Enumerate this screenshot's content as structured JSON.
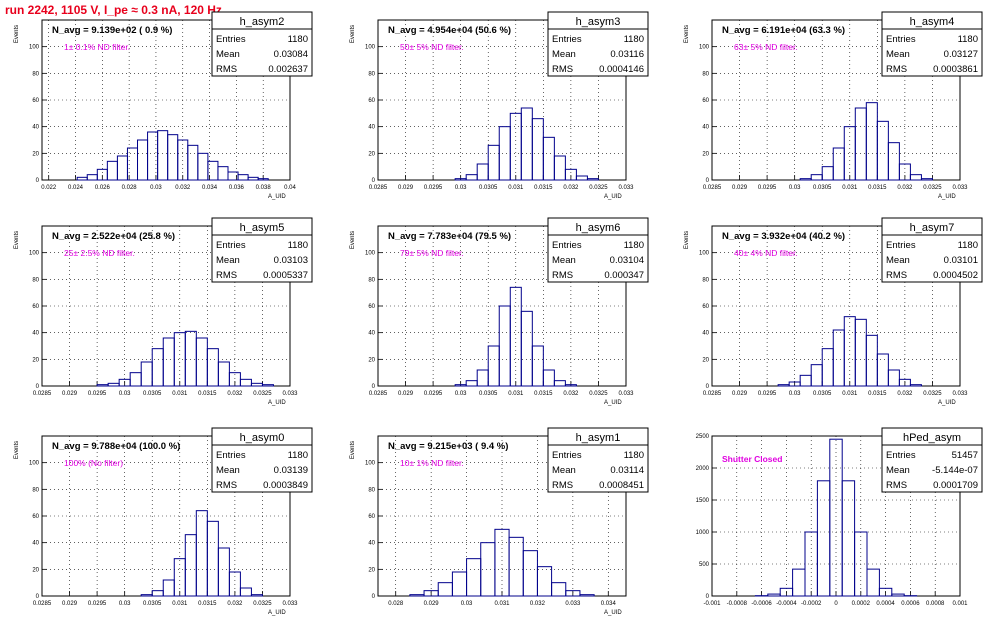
{
  "page": {
    "title": "run 2242,  1105 V, I_pe ≈ 0.3 nA, 120 Hz",
    "colors": {
      "title": "#e8001c",
      "annotation": "#e000e0",
      "histogram": "#00008b",
      "axes": "#000000",
      "grid": "#000000"
    }
  },
  "chart_data": [
    {
      "type": "bar",
      "name": "h_asym2",
      "title": "h_asym2",
      "headline": "N_avg = 9.139e+02 ( 0.9 %)",
      "annotation": "1± 0.1% ND filter.",
      "stats": [
        [
          "Entries",
          "1180"
        ],
        [
          "Mean",
          "0.03084"
        ],
        [
          "RMS",
          "0.002637"
        ]
      ],
      "xlabel": "A_UID",
      "ylabel": "Events",
      "xlim": [
        0.0215,
        0.04
      ],
      "ylim": [
        0,
        120
      ],
      "xticks": [
        0.022,
        0.024,
        0.026,
        0.028,
        0.03,
        0.032,
        0.034,
        0.036,
        0.038,
        0.04
      ],
      "xtick_labels": [
        "0.022",
        "0.024",
        "0.026",
        "0.028",
        "0.03",
        "0.032",
        "0.034",
        "0.036",
        "0.038",
        "0.04"
      ],
      "yticks": [
        0,
        20,
        40,
        60,
        80,
        100
      ],
      "grid": true,
      "legend_position": "top-right",
      "bins": {
        "x": [
          0.0245,
          0.02525,
          0.026,
          0.02675,
          0.0275,
          0.02825,
          0.029,
          0.02975,
          0.0305,
          0.03125,
          0.032,
          0.03275,
          0.0335,
          0.03425,
          0.035,
          0.03575,
          0.0365,
          0.03725,
          0.038
        ],
        "values": [
          2,
          4,
          8,
          14,
          18,
          24,
          30,
          36,
          37,
          34,
          30,
          26,
          20,
          14,
          10,
          6,
          4,
          2,
          1
        ]
      }
    },
    {
      "type": "bar",
      "name": "h_asym3",
      "title": "h_asym3",
      "headline": "N_avg = 4.954e+04 (50.6 %)",
      "annotation": "50± 5% ND filter.",
      "stats": [
        [
          "Entries",
          "1180"
        ],
        [
          "Mean",
          "0.03116"
        ],
        [
          "RMS",
          "0.0004146"
        ]
      ],
      "xlabel": "A_UID",
      "ylabel": "Events",
      "xlim": [
        0.0285,
        0.033
      ],
      "ylim": [
        0,
        120
      ],
      "xticks": [
        0.0285,
        0.029,
        0.0295,
        0.03,
        0.0305,
        0.031,
        0.0315,
        0.032,
        0.0325,
        0.033
      ],
      "xtick_labels": [
        "0.0285",
        "0.029",
        "0.0295",
        "0.03",
        "0.0305",
        "0.031",
        "0.0315",
        "0.032",
        "0.0325",
        "0.033"
      ],
      "yticks": [
        0,
        20,
        40,
        60,
        80,
        100
      ],
      "grid": true,
      "legend_position": "top-right",
      "bins": {
        "x": [
          0.03,
          0.0302,
          0.0304,
          0.0306,
          0.0308,
          0.031,
          0.0312,
          0.0314,
          0.0316,
          0.0318,
          0.032,
          0.0322,
          0.0324
        ],
        "values": [
          1,
          4,
          12,
          26,
          40,
          50,
          54,
          46,
          32,
          18,
          8,
          3,
          1
        ]
      }
    },
    {
      "type": "bar",
      "name": "h_asym4",
      "title": "h_asym4",
      "headline": "N_avg = 6.191e+04 (63.3 %)",
      "annotation": "63± 5% ND filter.",
      "stats": [
        [
          "Entries",
          "1180"
        ],
        [
          "Mean",
          "0.03127"
        ],
        [
          "RMS",
          "0.0003861"
        ]
      ],
      "xlabel": "A_UID",
      "ylabel": "Events",
      "xlim": [
        0.0285,
        0.033
      ],
      "ylim": [
        0,
        120
      ],
      "xticks": [
        0.0285,
        0.029,
        0.0295,
        0.03,
        0.0305,
        0.031,
        0.0315,
        0.032,
        0.0325,
        0.033
      ],
      "xtick_labels": [
        "0.0285",
        "0.029",
        "0.0295",
        "0.03",
        "0.0305",
        "0.031",
        "0.0315",
        "0.032",
        "0.0325",
        "0.033"
      ],
      "yticks": [
        0,
        20,
        40,
        60,
        80,
        100
      ],
      "grid": true,
      "legend_position": "top-right",
      "bins": {
        "x": [
          0.0302,
          0.0304,
          0.0306,
          0.0308,
          0.031,
          0.0312,
          0.0314,
          0.0316,
          0.0318,
          0.032,
          0.0322,
          0.0324
        ],
        "values": [
          1,
          4,
          10,
          24,
          40,
          54,
          58,
          44,
          28,
          12,
          4,
          1
        ]
      }
    },
    {
      "type": "bar",
      "name": "h_asym5",
      "title": "h_asym5",
      "headline": "N_avg = 2.522e+04 (25.8 %)",
      "annotation": "25± 2.5% ND filter.",
      "stats": [
        [
          "Entries",
          "1180"
        ],
        [
          "Mean",
          "0.03103"
        ],
        [
          "RMS",
          "0.0005337"
        ]
      ],
      "xlabel": "A_UID",
      "ylabel": "Events",
      "xlim": [
        0.0285,
        0.033
      ],
      "ylim": [
        0,
        120
      ],
      "xticks": [
        0.0285,
        0.029,
        0.0295,
        0.03,
        0.0305,
        0.031,
        0.0315,
        0.032,
        0.0325,
        0.033
      ],
      "xtick_labels": [
        "0.0285",
        "0.029",
        "0.0295",
        "0.03",
        "0.0305",
        "0.031",
        "0.0315",
        "0.032",
        "0.0325",
        "0.033"
      ],
      "yticks": [
        0,
        20,
        40,
        60,
        80,
        100
      ],
      "grid": true,
      "legend_position": "top-right",
      "bins": {
        "x": [
          0.0296,
          0.0298,
          0.03,
          0.0302,
          0.0304,
          0.0306,
          0.0308,
          0.031,
          0.0312,
          0.0314,
          0.0316,
          0.0318,
          0.032,
          0.0322,
          0.0324,
          0.0326
        ],
        "values": [
          1,
          2,
          5,
          10,
          18,
          28,
          36,
          40,
          41,
          36,
          28,
          18,
          10,
          5,
          2,
          1
        ]
      }
    },
    {
      "type": "bar",
      "name": "h_asym6",
      "title": "h_asym6",
      "headline": "N_avg = 7.783e+04 (79.5 %)",
      "annotation": "79± 5% ND filter.",
      "stats": [
        [
          "Entries",
          "1180"
        ],
        [
          "Mean",
          "0.03104"
        ],
        [
          "RMS",
          "0.000347"
        ]
      ],
      "xlabel": "A_UID",
      "ylabel": "Events",
      "xlim": [
        0.0285,
        0.033
      ],
      "ylim": [
        0,
        120
      ],
      "xticks": [
        0.0285,
        0.029,
        0.0295,
        0.03,
        0.0305,
        0.031,
        0.0315,
        0.032,
        0.0325,
        0.033
      ],
      "xtick_labels": [
        "0.0285",
        "0.029",
        "0.0295",
        "0.03",
        "0.0305",
        "0.031",
        "0.0315",
        "0.032",
        "0.0325",
        "0.033"
      ],
      "yticks": [
        0,
        20,
        40,
        60,
        80,
        100
      ],
      "grid": true,
      "legend_position": "top-right",
      "bins": {
        "x": [
          0.03,
          0.0302,
          0.0304,
          0.0306,
          0.0308,
          0.031,
          0.0312,
          0.0314,
          0.0316,
          0.0318,
          0.032
        ],
        "values": [
          1,
          4,
          12,
          30,
          60,
          74,
          56,
          30,
          12,
          4,
          1
        ]
      }
    },
    {
      "type": "bar",
      "name": "h_asym7",
      "title": "h_asym7",
      "headline": "N_avg = 3.932e+04 (40.2 %)",
      "annotation": "40± 4% ND filter.",
      "stats": [
        [
          "Entries",
          "1180"
        ],
        [
          "Mean",
          "0.03101"
        ],
        [
          "RMS",
          "0.0004502"
        ]
      ],
      "xlabel": "A_UID",
      "ylabel": "Events",
      "xlim": [
        0.0285,
        0.033
      ],
      "ylim": [
        0,
        120
      ],
      "xticks": [
        0.0285,
        0.029,
        0.0295,
        0.03,
        0.0305,
        0.031,
        0.0315,
        0.032,
        0.0325,
        0.033
      ],
      "xtick_labels": [
        "0.0285",
        "0.029",
        "0.0295",
        "0.03",
        "0.0305",
        "0.031",
        "0.0315",
        "0.032",
        "0.0325",
        "0.033"
      ],
      "yticks": [
        0,
        20,
        40,
        60,
        80,
        100
      ],
      "grid": true,
      "legend_position": "top-right",
      "bins": {
        "x": [
          0.0298,
          0.03,
          0.0302,
          0.0304,
          0.0306,
          0.0308,
          0.031,
          0.0312,
          0.0314,
          0.0316,
          0.0318,
          0.032,
          0.0322
        ],
        "values": [
          1,
          3,
          8,
          16,
          28,
          42,
          52,
          50,
          38,
          24,
          12,
          5,
          1
        ]
      }
    },
    {
      "type": "bar",
      "name": "h_asym0",
      "title": "h_asym0",
      "headline": "N_avg = 9.788e+04 (100.0 %)",
      "annotation": "100% (No filter)",
      "stats": [
        [
          "Entries",
          "1180"
        ],
        [
          "Mean",
          "0.03139"
        ],
        [
          "RMS",
          "0.0003849"
        ]
      ],
      "xlabel": "A_UID",
      "ylabel": "Events",
      "xlim": [
        0.0285,
        0.033
      ],
      "ylim": [
        0,
        120
      ],
      "xticks": [
        0.0285,
        0.029,
        0.0295,
        0.03,
        0.0305,
        0.031,
        0.0315,
        0.032,
        0.0325,
        0.033
      ],
      "xtick_labels": [
        "0.0285",
        "0.029",
        "0.0295",
        "0.03",
        "0.0305",
        "0.031",
        "0.0315",
        "0.032",
        "0.0325",
        "0.033"
      ],
      "yticks": [
        0,
        20,
        40,
        60,
        80,
        100
      ],
      "grid": true,
      "legend_position": "top-right",
      "bins": {
        "x": [
          0.0304,
          0.0306,
          0.0308,
          0.031,
          0.0312,
          0.0314,
          0.0316,
          0.0318,
          0.032,
          0.0322,
          0.0324
        ],
        "values": [
          1,
          4,
          12,
          28,
          46,
          64,
          56,
          36,
          18,
          6,
          1
        ]
      }
    },
    {
      "type": "bar",
      "name": "h_asym1",
      "title": "h_asym1",
      "headline": "N_avg = 9.215e+03 ( 9.4 %)",
      "annotation": "10± 1% ND filter.",
      "stats": [
        [
          "Entries",
          "1180"
        ],
        [
          "Mean",
          "0.03114"
        ],
        [
          "RMS",
          "0.0008451"
        ]
      ],
      "xlabel": "A_UID",
      "ylabel": "Events",
      "xlim": [
        0.0275,
        0.0345
      ],
      "ylim": [
        0,
        120
      ],
      "xticks": [
        0.028,
        0.029,
        0.03,
        0.031,
        0.032,
        0.033,
        0.034
      ],
      "xtick_labels": [
        "0.028",
        "0.029",
        "0.03",
        "0.031",
        "0.032",
        "0.033",
        "0.034"
      ],
      "yticks": [
        0,
        20,
        40,
        60,
        80,
        100
      ],
      "grid": true,
      "legend_position": "top-right",
      "bins": {
        "x": [
          0.0286,
          0.029,
          0.0294,
          0.0298,
          0.0302,
          0.0306,
          0.031,
          0.0314,
          0.0318,
          0.0322,
          0.0326,
          0.033,
          0.0334
        ],
        "values": [
          1,
          4,
          10,
          18,
          28,
          40,
          50,
          44,
          34,
          22,
          10,
          4,
          1
        ]
      }
    },
    {
      "type": "bar",
      "name": "hPed_asym",
      "title": "hPed_asym",
      "headline": "",
      "annotation": "Shutter Closed",
      "stats": [
        [
          "Entries",
          "51457"
        ],
        [
          "Mean",
          "-5.144e-07"
        ],
        [
          "RMS",
          "0.0001709"
        ]
      ],
      "xlabel": "",
      "ylabel": "",
      "xlim": [
        -0.001,
        0.001
      ],
      "ylim": [
        0,
        2500
      ],
      "xticks": [
        -0.001,
        -0.0008,
        -0.0006,
        -0.0004,
        -0.0002,
        0,
        0.0002,
        0.0004,
        0.0006,
        0.0008,
        0.001
      ],
      "xtick_labels": [
        "-0.001",
        "-0.0008",
        "-0.0006",
        "-0.0004",
        "-0.0002",
        "0",
        "0.0002",
        "0.0004",
        "0.0006",
        "0.0008",
        "0.001"
      ],
      "yticks": [
        0,
        500,
        1000,
        1500,
        2000,
        2500
      ],
      "grid": true,
      "legend_position": "top-right",
      "bins": {
        "x": [
          -0.0006,
          -0.0005,
          -0.0004,
          -0.0003,
          -0.0002,
          -0.0001,
          0,
          0.0001,
          0.0002,
          0.0003,
          0.0004,
          0.0005,
          0.0006
        ],
        "values": [
          5,
          30,
          120,
          420,
          1000,
          1800,
          2450,
          1800,
          1000,
          420,
          120,
          30,
          5
        ]
      }
    }
  ]
}
